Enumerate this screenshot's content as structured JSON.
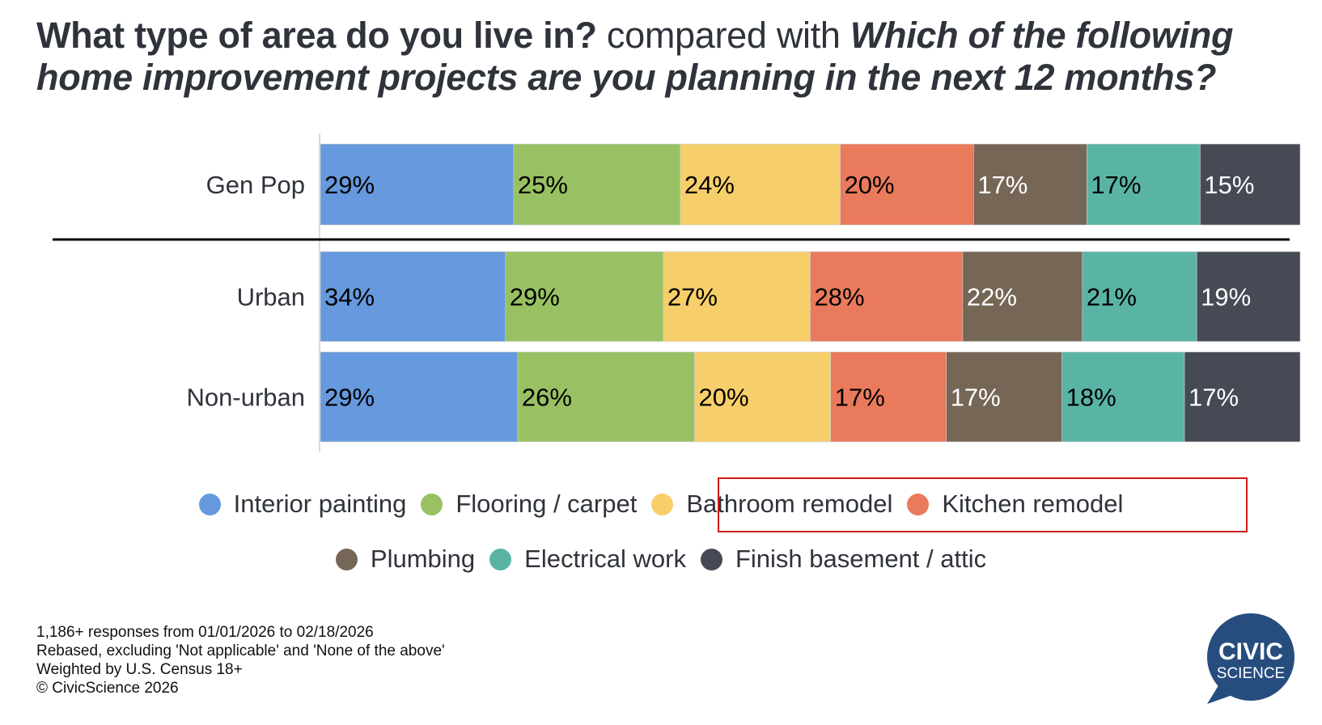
{
  "title": {
    "part1": "What type of area do you live in?",
    "part2": " compared with ",
    "part3": "Which of the following home improvement projects are you planning in the next 12 months?"
  },
  "chart_data": {
    "type": "bar",
    "orientation": "horizontal-stacked-100",
    "categories": [
      "Gen Pop",
      "Urban",
      "Non-urban"
    ],
    "series": [
      {
        "name": "Interior painting",
        "color": "#6699dd",
        "label_color": "#000000",
        "values": [
          29,
          34,
          29
        ]
      },
      {
        "name": "Flooring / carpet",
        "color": "#99c163",
        "label_color": "#000000",
        "values": [
          25,
          29,
          26
        ]
      },
      {
        "name": "Bathroom remodel",
        "color": "#f7cf6a",
        "label_color": "#000000",
        "values": [
          24,
          27,
          20
        ]
      },
      {
        "name": "Kitchen remodel",
        "color": "#ea7a5c",
        "label_color": "#000000",
        "values": [
          20,
          28,
          17
        ]
      },
      {
        "name": "Plumbing",
        "color": "#766656",
        "label_color": "#ffffff",
        "values": [
          17,
          22,
          17
        ]
      },
      {
        "name": "Electrical work",
        "color": "#5ab4a6",
        "label_color": "#000000",
        "values": [
          17,
          21,
          18
        ]
      },
      {
        "name": "Finish basement / attic",
        "color": "#454a54",
        "label_color": "#ffffff",
        "values": [
          15,
          19,
          17
        ]
      }
    ],
    "value_suffix": "%",
    "highlighted_legend": [
      "Bathroom remodel",
      "Kitchen remodel"
    ],
    "highlight_color": "#d0191b",
    "legend_placement": "bottom"
  },
  "footnotes": [
    "1,186+ responses from 01/01/2026 to 02/18/2026",
    "Rebased, excluding 'Not applicable' and 'None of the above'",
    "Weighted by U.S. Census 18+",
    "© CivicScience 2026"
  ],
  "logo": {
    "line1": "CIVIC",
    "line2": "SCIENCE",
    "color": "#264d7e"
  }
}
